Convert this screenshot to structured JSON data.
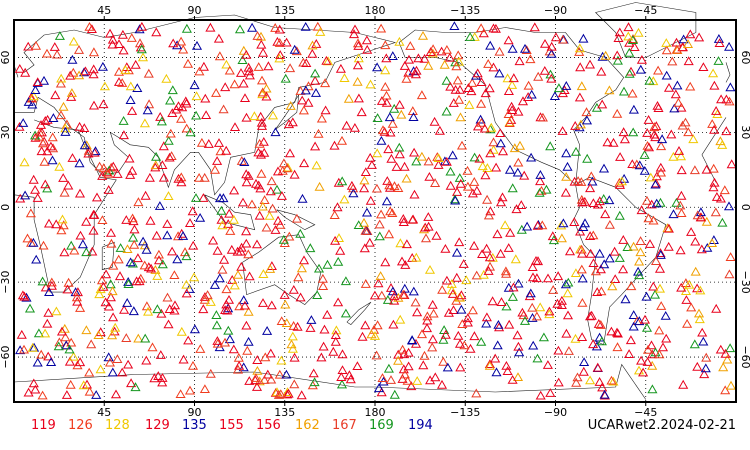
{
  "map": {
    "projection": "cylindrical equidistant",
    "center_longitude": 180,
    "lat_range": [
      -78,
      75
    ],
    "grid_style": "dotted",
    "marker": "open-triangle",
    "top_lon_ticks": [
      {
        "lon": 45,
        "label": "45"
      },
      {
        "lon": 90,
        "label": "90"
      },
      {
        "lon": 135,
        "label": "135"
      },
      {
        "lon": 180,
        "label": "180"
      },
      {
        "lon": 225,
        "label": "−135"
      },
      {
        "lon": 270,
        "label": "−90"
      },
      {
        "lon": 315,
        "label": "−45"
      }
    ],
    "bottom_lon_ticks": [
      {
        "lon": 45,
        "label": "45"
      },
      {
        "lon": 90,
        "label": "90"
      },
      {
        "lon": 135,
        "label": "135"
      },
      {
        "lon": 180,
        "label": "180"
      },
      {
        "lon": 225,
        "label": "−135"
      },
      {
        "lon": 270,
        "label": "−90"
      },
      {
        "lon": 315,
        "label": "−45"
      }
    ],
    "lat_ticks": [
      {
        "lat": 60,
        "label": "60"
      },
      {
        "lat": 30,
        "label": "30"
      },
      {
        "lat": 0,
        "label": "0"
      },
      {
        "lat": -30,
        "label": "−30"
      },
      {
        "lat": -60,
        "label": "−60"
      }
    ]
  },
  "legend": [
    {
      "label": "119",
      "color": "#e8001c"
    },
    {
      "label": "126",
      "color": "#f03c1e"
    },
    {
      "label": "128",
      "color": "#f0c800"
    },
    {
      "label": "129",
      "color": "#e8001c"
    },
    {
      "label": "135",
      "color": "#0000a0"
    },
    {
      "label": "155",
      "color": "#e8001c"
    },
    {
      "label": "156",
      "color": "#e8001c"
    },
    {
      "label": "162",
      "color": "#f0a000"
    },
    {
      "label": "167",
      "color": "#e83c28"
    },
    {
      "label": "169",
      "color": "#14961e"
    },
    {
      "label": "194",
      "color": "#0000a0"
    }
  ],
  "footer": {
    "label": "UCARwet2.2024-02-21"
  }
}
